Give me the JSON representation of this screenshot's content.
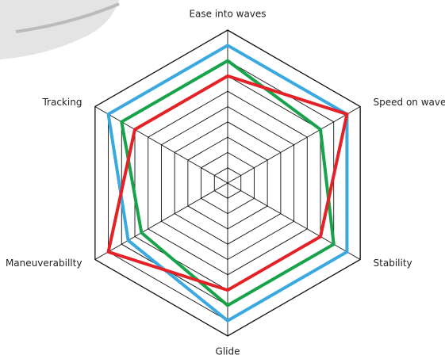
{
  "chart_data": {
    "type": "radar",
    "categories": [
      "Ease into waves",
      "Speed on waves",
      "Stability",
      "Glide",
      "Maneuverabillty",
      "Tracking"
    ],
    "rlim": [
      0,
      10
    ],
    "rticks": [
      1,
      2,
      3,
      4,
      5,
      6,
      7,
      8,
      9,
      10
    ],
    "grid": true,
    "series": [
      {
        "color": "#3aa9e0",
        "values": [
          9,
          9,
          9,
          9,
          7.5,
          9
        ]
      },
      {
        "color": "#16a34a",
        "values": [
          8,
          7,
          8,
          8,
          6.5,
          8
        ]
      },
      {
        "color": "#e32127",
        "values": [
          7,
          9,
          7,
          7,
          9,
          7
        ]
      }
    ]
  }
}
